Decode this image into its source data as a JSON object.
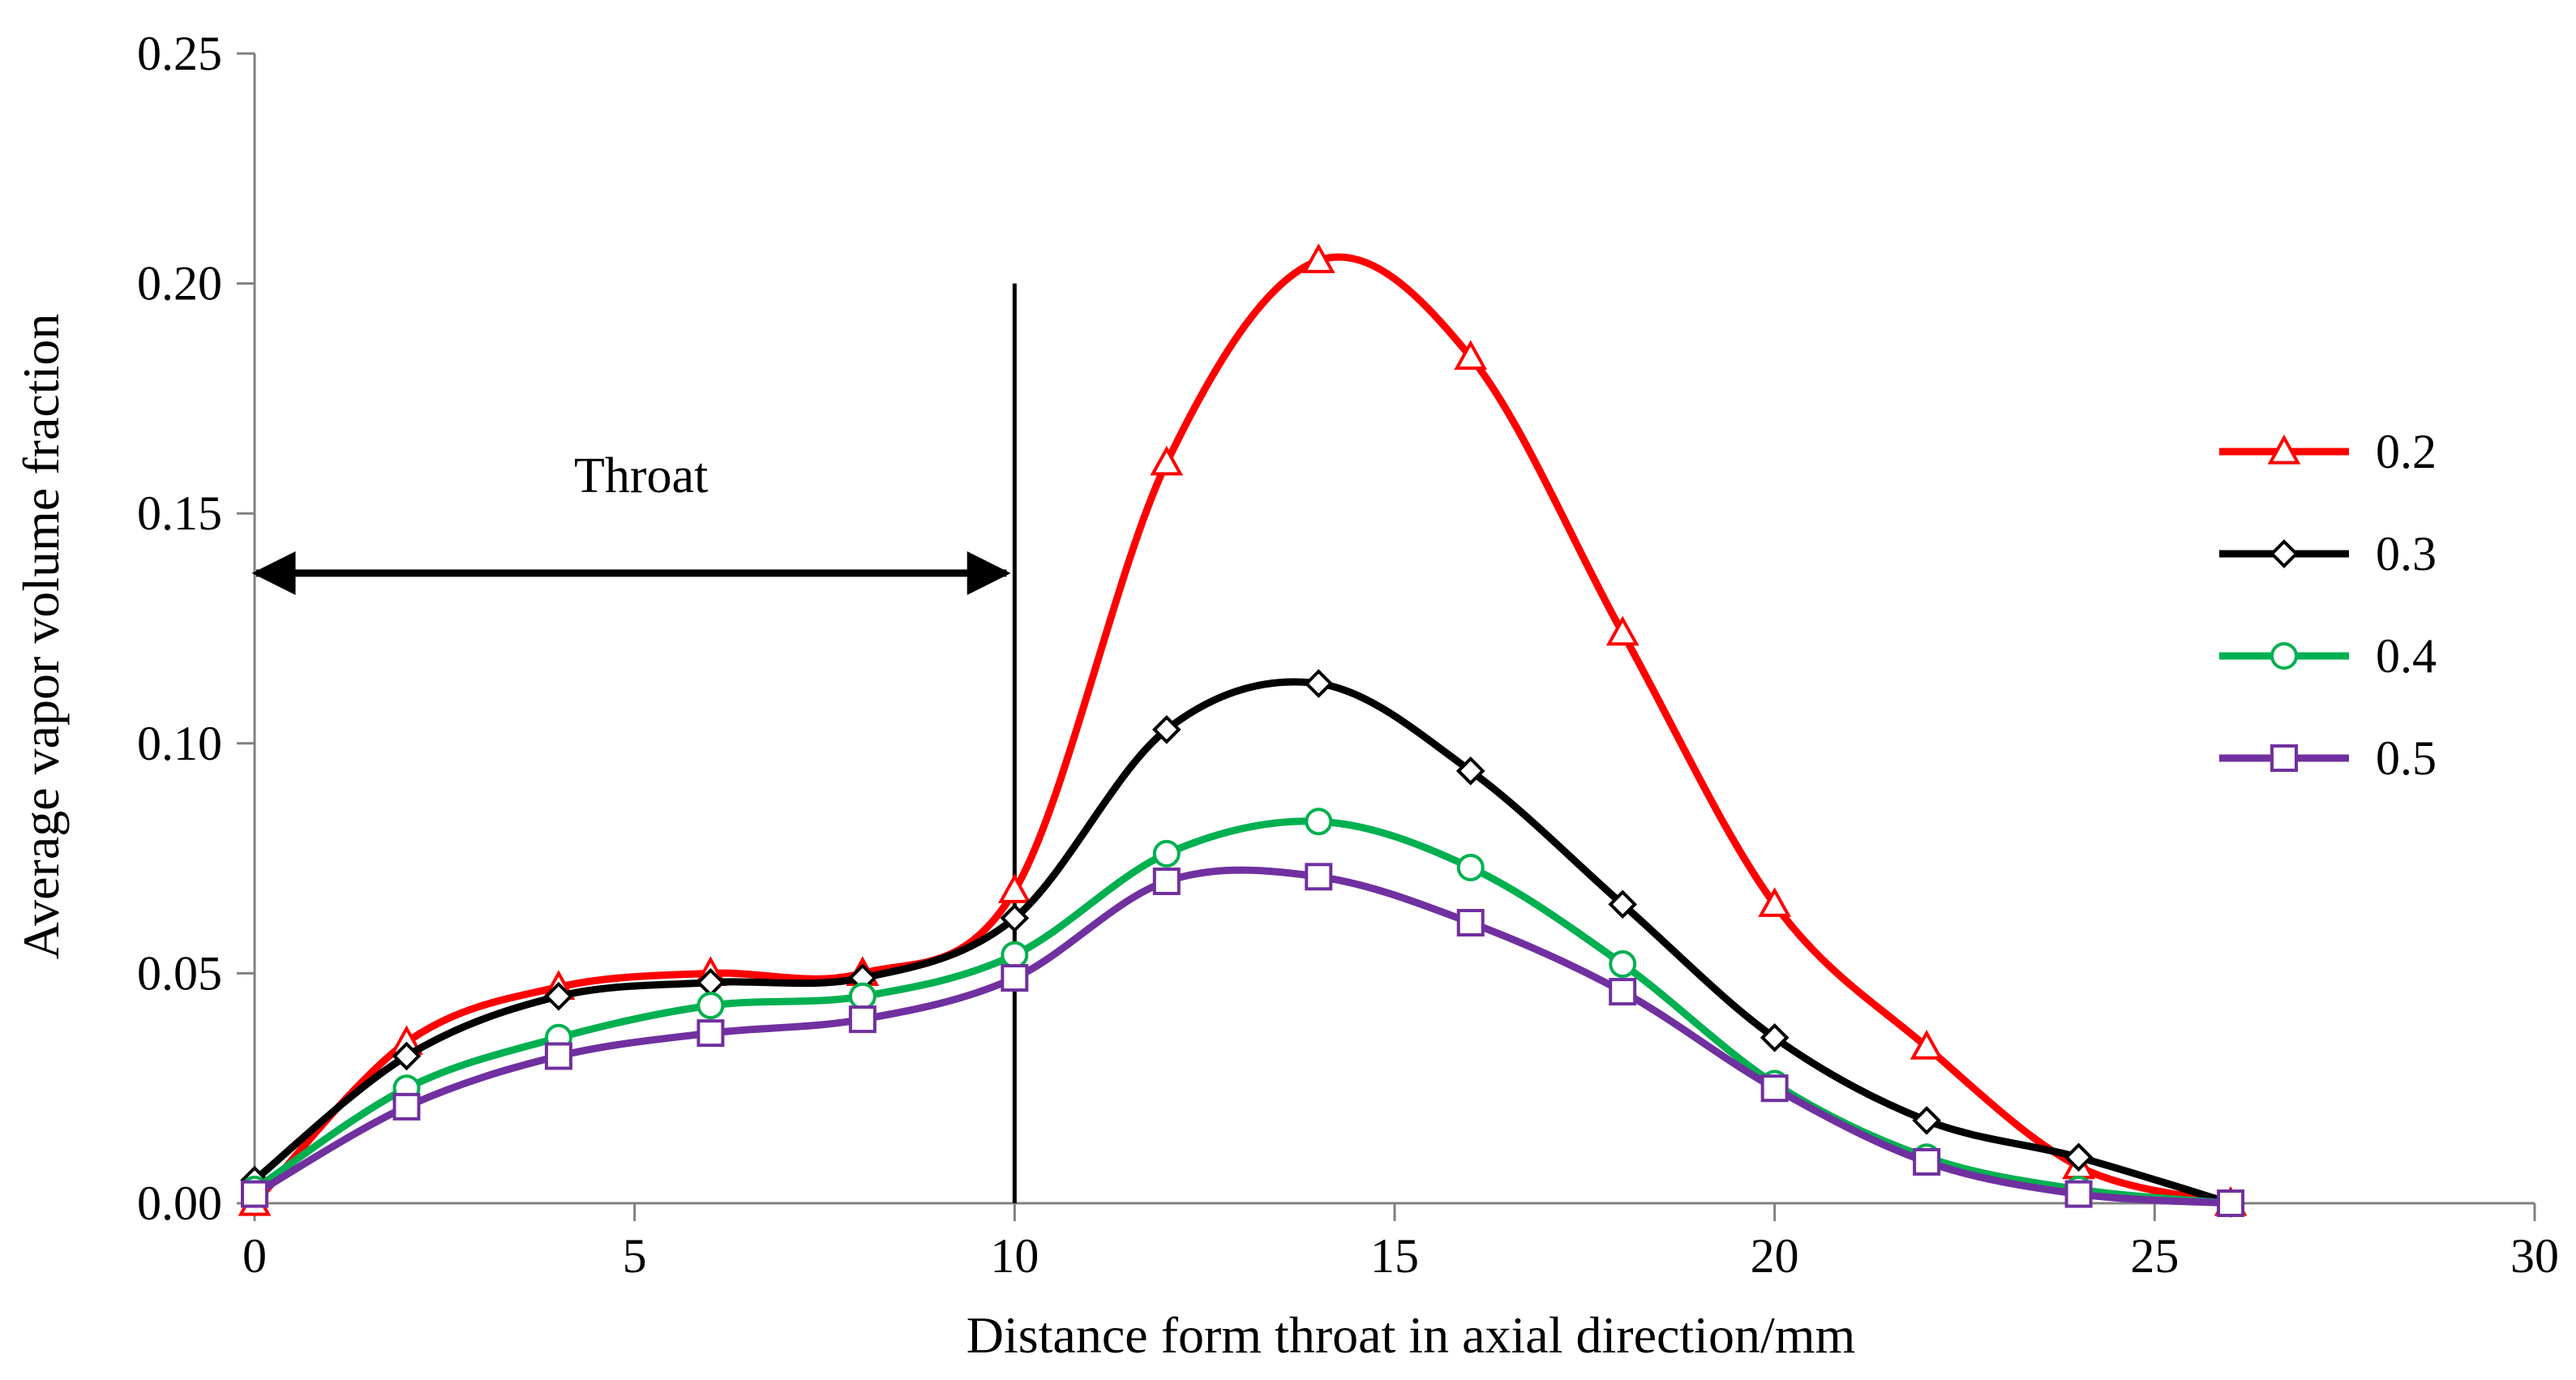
{
  "chart_data": {
    "type": "line",
    "title": "",
    "xlabel": "Distance form throat in axial direction/mm",
    "ylabel": "Average vapor volume fraction",
    "xlim": [
      0,
      30
    ],
    "ylim": [
      0,
      0.25
    ],
    "xticks": [
      "0",
      "5",
      "10",
      "15",
      "20",
      "25",
      "30"
    ],
    "yticks": [
      "0.00",
      "0.05",
      "0.10",
      "0.15",
      "0.20",
      "0.25"
    ],
    "grid": false,
    "legend_position": "right",
    "annotations": {
      "throat_label": "Throat",
      "throat_range": [
        0,
        10
      ],
      "throat_arrow_y": 0.137,
      "divider_x": 10,
      "divider_y_top": 0.2
    },
    "x": [
      0,
      2,
      4,
      6,
      8,
      10,
      12,
      14,
      16,
      18,
      20,
      22,
      24,
      26
    ],
    "series": [
      {
        "name": "0.2",
        "color": "#ff0000",
        "marker": "triangle",
        "values": [
          0.0,
          0.035,
          0.047,
          0.05,
          0.05,
          0.068,
          0.161,
          0.205,
          0.184,
          0.124,
          0.065,
          0.034,
          0.008,
          0.0
        ]
      },
      {
        "name": "0.3",
        "color": "#000000",
        "marker": "diamond",
        "values": [
          0.005,
          0.032,
          0.045,
          0.048,
          0.049,
          0.062,
          0.103,
          0.113,
          0.094,
          0.065,
          0.036,
          0.018,
          0.01,
          0.0
        ]
      },
      {
        "name": "0.4",
        "color": "#00b050",
        "marker": "circle",
        "values": [
          0.003,
          0.025,
          0.036,
          0.043,
          0.045,
          0.054,
          0.076,
          0.083,
          0.073,
          0.052,
          0.026,
          0.01,
          0.003,
          0.0
        ]
      },
      {
        "name": "0.5",
        "color": "#7030a0",
        "marker": "square",
        "values": [
          0.002,
          0.021,
          0.032,
          0.037,
          0.04,
          0.049,
          0.07,
          0.071,
          0.061,
          0.046,
          0.025,
          0.009,
          0.002,
          0.0
        ]
      }
    ]
  }
}
